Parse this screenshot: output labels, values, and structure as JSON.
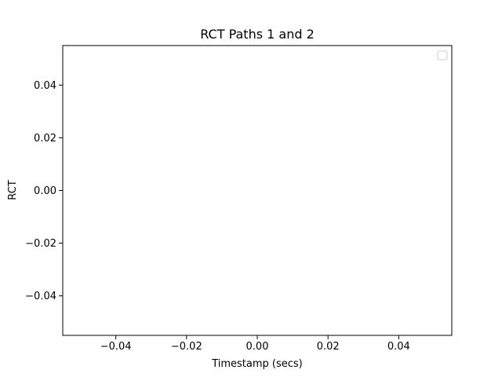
{
  "chart_data": {
    "type": "line",
    "title": "RCT Paths 1 and 2",
    "xlabel": "Timestamp (secs)",
    "ylabel": "RCT",
    "series": [],
    "xlim": [
      -0.055,
      0.055
    ],
    "ylim": [
      -0.055,
      0.055
    ],
    "x_ticks": [
      -0.04,
      -0.02,
      0.0,
      0.02,
      0.04
    ],
    "x_tick_labels": [
      "−0.04",
      "−0.02",
      "0.00",
      "0.02",
      "0.04"
    ],
    "y_ticks": [
      -0.04,
      -0.02,
      0.0,
      0.02,
      0.04
    ],
    "y_tick_labels": [
      "−0.04",
      "−0.02",
      "0.00",
      "0.02",
      "0.04"
    ],
    "grid": false,
    "legend": {
      "placement": "top-right",
      "entries": []
    }
  }
}
